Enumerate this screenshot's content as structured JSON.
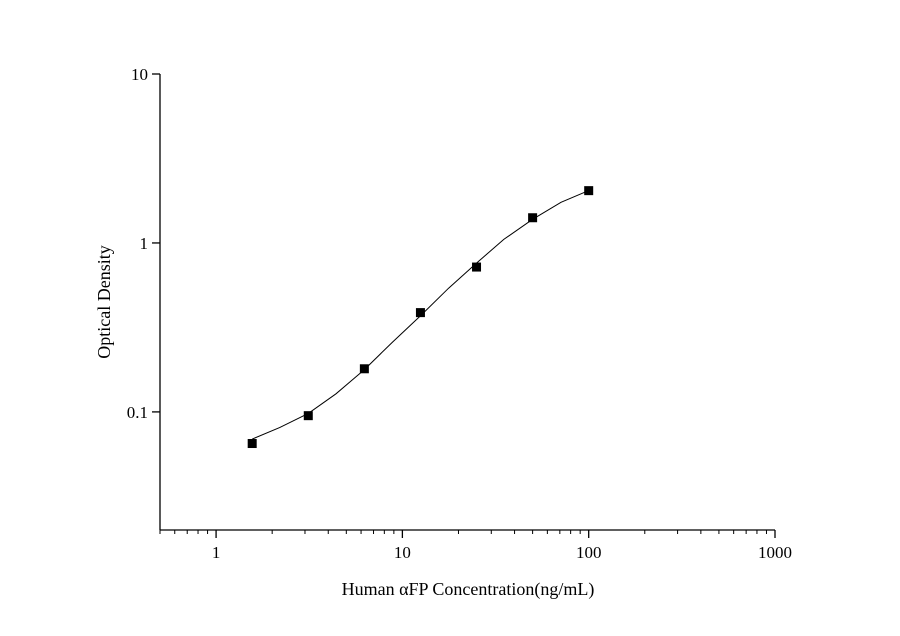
{
  "chart_data": {
    "type": "scatter",
    "x_label": "Human αFP Concentration(ng/mL)",
    "y_label": "Optical Density",
    "xscale": "log",
    "yscale": "log",
    "xlim": [
      0.5,
      1000
    ],
    "ylim": [
      0.02,
      10
    ],
    "xticks": [
      1,
      10,
      100,
      1000
    ],
    "xminorticks": [
      0.5,
      0.6,
      0.7,
      0.8,
      0.9,
      2,
      3,
      4,
      5,
      6,
      7,
      8,
      9,
      20,
      30,
      40,
      50,
      60,
      70,
      80,
      90,
      200,
      300,
      400,
      500,
      600,
      700,
      800,
      900
    ],
    "yticks": [
      0.1,
      1,
      10
    ],
    "series": [
      {
        "kind": "points",
        "color": "#000000",
        "x": [
          1.5625,
          3.125,
          6.25,
          12.5,
          25,
          50,
          100
        ],
        "values": [
          0.065,
          0.095,
          0.18,
          0.387,
          0.72,
          1.41,
          2.04
        ]
      },
      {
        "kind": "line",
        "color": "#000000",
        "x": [
          1.5625,
          2.2,
          3.125,
          4.4,
          6.25,
          8.8,
          12.5,
          17.7,
          25,
          35,
          50,
          71,
          100
        ],
        "values": [
          0.069,
          0.081,
          0.098,
          0.128,
          0.178,
          0.257,
          0.37,
          0.54,
          0.76,
          1.05,
          1.38,
          1.74,
          2.04
        ]
      }
    ]
  }
}
